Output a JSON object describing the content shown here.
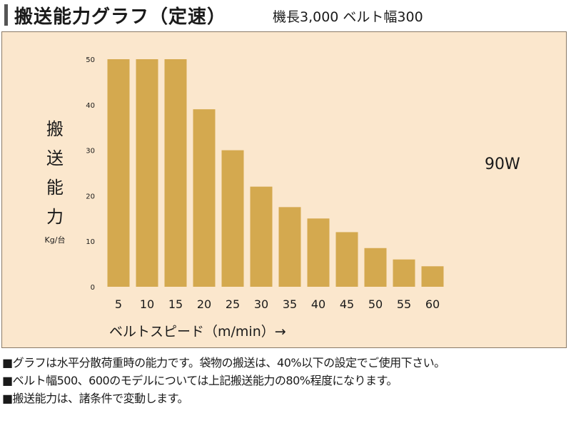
{
  "header": {
    "title": "搬送能力グラフ（定速）",
    "spec": "機長3,000 ベルト幅300"
  },
  "chart_data": {
    "type": "bar",
    "title": "",
    "motor_label": "90W",
    "ylabel_chars": [
      "搬",
      "送",
      "能",
      "力"
    ],
    "yunit": "Kg/台",
    "xlabel": "ベルトスピード（m/min）→",
    "categories": [
      "5",
      "10",
      "15",
      "20",
      "25",
      "30",
      "35",
      "40",
      "45",
      "50",
      "55",
      "60"
    ],
    "values": [
      50,
      50,
      50,
      39,
      30,
      22,
      17.5,
      15,
      12,
      8.5,
      6,
      4.5
    ],
    "ylim": [
      0,
      50
    ],
    "yticks": [
      0,
      10,
      20,
      30,
      40,
      50
    ],
    "bar_color": "#d4a94f",
    "grid": false,
    "legend": "none"
  },
  "notes": [
    "■グラフは水平分散荷重時の能力です。袋物の搬送は、40%以下の設定でご使用下さい。",
    "■ベルト幅500、600のモデルについては上記搬送能力の80%程度になります。",
    "■搬送能力は、諸条件で変動します。"
  ]
}
